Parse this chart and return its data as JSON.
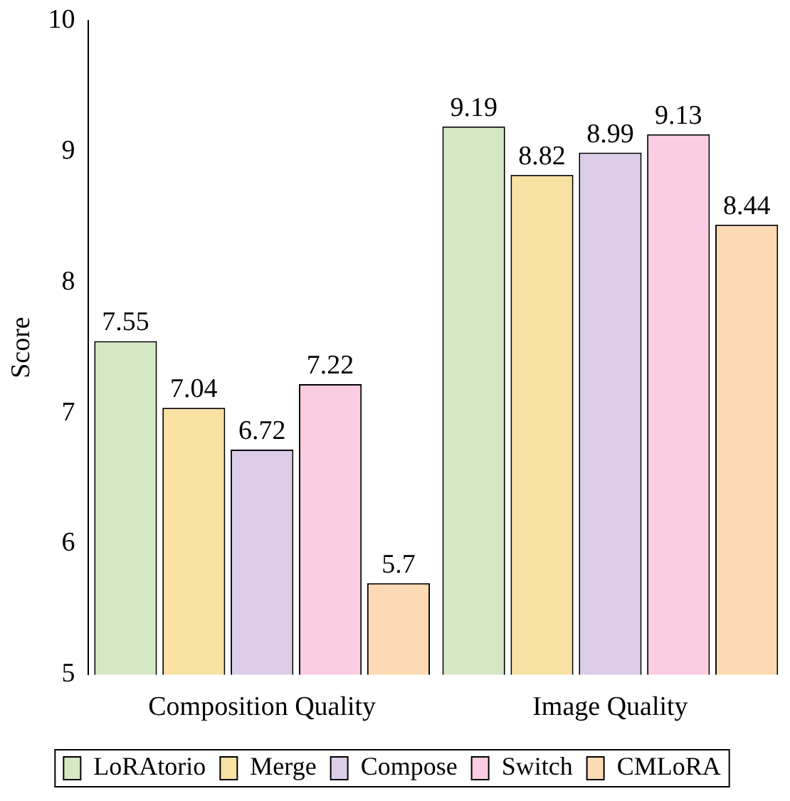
{
  "chart_data": {
    "type": "bar",
    "ylabel": "Score",
    "categories": [
      "Composition Quality",
      "Image Quality"
    ],
    "series": [
      {
        "name": "LoRAtorio",
        "color": "#d5e8c4",
        "values": [
          7.55,
          9.19
        ]
      },
      {
        "name": "Merge",
        "color": "#f9e0a3",
        "values": [
          7.04,
          8.82
        ]
      },
      {
        "name": "Compose",
        "color": "#dccde8",
        "values": [
          6.72,
          8.99
        ]
      },
      {
        "name": "Switch",
        "color": "#fbcde3",
        "values": [
          7.22,
          9.13
        ]
      },
      {
        "name": "CMLoRA",
        "color": "#fdd9b4",
        "values": [
          5.7,
          8.44
        ]
      }
    ],
    "ylim": [
      5,
      10
    ],
    "yticks": [
      5,
      6,
      7,
      8,
      9,
      10
    ],
    "grid": false,
    "legend": "bottom",
    "data_labels": true
  }
}
